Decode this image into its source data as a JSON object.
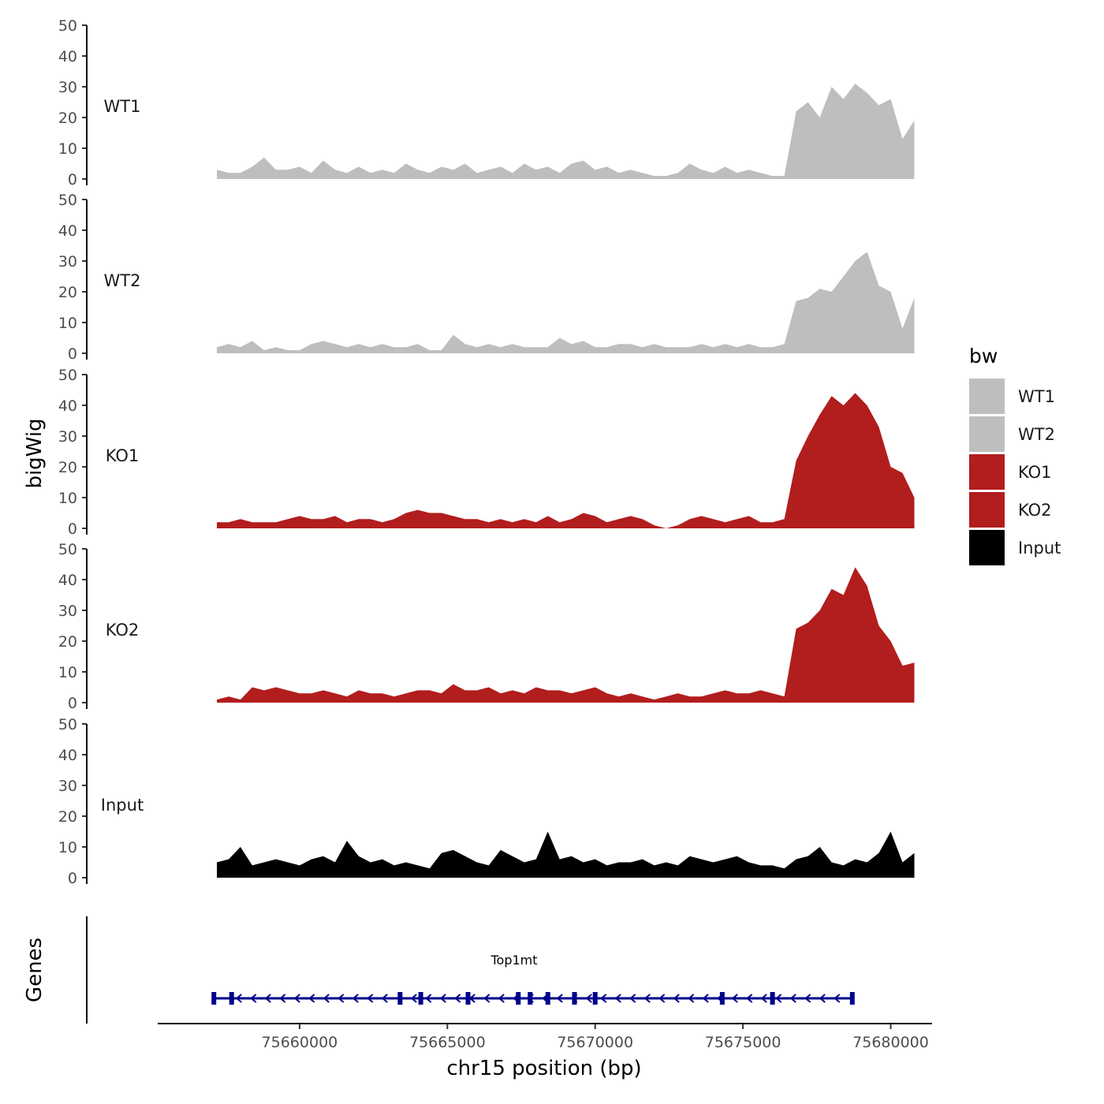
{
  "chart_data": {
    "type": "area",
    "x": [
      75657200,
      75657600,
      75658000,
      75658400,
      75658800,
      75659200,
      75659600,
      75660000,
      75660400,
      75660800,
      75661200,
      75661600,
      75662000,
      75662400,
      75662800,
      75663200,
      75663600,
      75664000,
      75664400,
      75664800,
      75665200,
      75665600,
      75666000,
      75666400,
      75666800,
      75667200,
      75667600,
      75668000,
      75668400,
      75668800,
      75669200,
      75669600,
      75670000,
      75670400,
      75670800,
      75671200,
      75671600,
      75672000,
      75672400,
      75672800,
      75673200,
      75673600,
      75674000,
      75674400,
      75674800,
      75675200,
      75675600,
      75676000,
      75676400,
      75676800,
      75677200,
      75677600,
      75678000,
      75678400,
      75678800,
      75679200,
      75679600,
      75680000,
      75680400,
      75680800
    ],
    "series": [
      {
        "name": "WT1",
        "color": "#bebebe",
        "values": [
          3,
          2,
          2,
          4,
          7,
          3,
          3,
          4,
          2,
          6,
          3,
          2,
          4,
          2,
          3,
          2,
          5,
          3,
          2,
          4,
          3,
          5,
          2,
          3,
          4,
          2,
          5,
          3,
          4,
          2,
          5,
          6,
          3,
          4,
          2,
          3,
          2,
          1,
          1,
          2,
          5,
          3,
          2,
          4,
          2,
          3,
          2,
          1,
          1,
          22,
          25,
          20,
          30,
          26,
          31,
          28,
          24,
          26,
          13,
          19
        ]
      },
      {
        "name": "WT2",
        "color": "#bebebe",
        "values": [
          2,
          3,
          2,
          4,
          1,
          2,
          1,
          1,
          3,
          4,
          3,
          2,
          3,
          2,
          3,
          2,
          2,
          3,
          1,
          1,
          6,
          3,
          2,
          3,
          2,
          3,
          2,
          2,
          2,
          5,
          3,
          4,
          2,
          2,
          3,
          3,
          2,
          3,
          2,
          2,
          2,
          3,
          2,
          3,
          2,
          3,
          2,
          2,
          3,
          17,
          18,
          21,
          20,
          25,
          30,
          33,
          22,
          20,
          8,
          18
        ]
      },
      {
        "name": "KO1",
        "color": "#b21d1d",
        "values": [
          2,
          2,
          3,
          2,
          2,
          2,
          3,
          4,
          3,
          3,
          4,
          2,
          3,
          3,
          2,
          3,
          5,
          6,
          5,
          5,
          4,
          3,
          3,
          2,
          3,
          2,
          3,
          2,
          4,
          2,
          3,
          5,
          4,
          2,
          3,
          4,
          3,
          1,
          0,
          1,
          3,
          4,
          3,
          2,
          3,
          4,
          2,
          2,
          3,
          22,
          30,
          37,
          43,
          40,
          44,
          40,
          33,
          20,
          18,
          10
        ]
      },
      {
        "name": "KO2",
        "color": "#b21d1d",
        "values": [
          1,
          2,
          1,
          5,
          4,
          5,
          4,
          3,
          3,
          4,
          3,
          2,
          4,
          3,
          3,
          2,
          3,
          4,
          4,
          3,
          6,
          4,
          4,
          5,
          3,
          4,
          3,
          5,
          4,
          4,
          3,
          4,
          5,
          3,
          2,
          3,
          2,
          1,
          2,
          3,
          2,
          2,
          3,
          4,
          3,
          3,
          4,
          3,
          2,
          24,
          26,
          30,
          37,
          35,
          44,
          38,
          25,
          20,
          12,
          13
        ]
      },
      {
        "name": "Input",
        "color": "#000000",
        "values": [
          5,
          6,
          10,
          4,
          5,
          6,
          5,
          4,
          6,
          7,
          5,
          12,
          7,
          5,
          6,
          4,
          5,
          4,
          3,
          8,
          9,
          7,
          5,
          4,
          9,
          7,
          5,
          6,
          15,
          6,
          7,
          5,
          6,
          4,
          5,
          5,
          6,
          4,
          5,
          4,
          7,
          6,
          5,
          6,
          7,
          5,
          4,
          4,
          3,
          6,
          7,
          10,
          5,
          4,
          6,
          5,
          8,
          15,
          5,
          8
        ]
      }
    ],
    "tracks": [
      "WT1",
      "WT2",
      "KO1",
      "KO2",
      "Input"
    ],
    "ylim": [
      0,
      50
    ],
    "yticks": [
      0,
      10,
      20,
      30,
      40,
      50
    ],
    "xlim": [
      75655200,
      75681400
    ],
    "xticks": [
      75660000,
      75665000,
      75670000,
      75675000,
      75680000
    ],
    "xtick_labels": [
      "75660000",
      "75665000",
      "75670000",
      "75675000",
      "75680000"
    ],
    "xlabel": "chr15 position (bp)",
    "ylabel": "bigWig",
    "gene_track_label": "Genes",
    "legend": {
      "title": "bw",
      "entries": [
        {
          "label": "WT1",
          "color": "#bebebe"
        },
        {
          "label": "WT2",
          "color": "#bebebe"
        },
        {
          "label": "KO1",
          "color": "#b21d1d"
        },
        {
          "label": "KO2",
          "color": "#b21d1d"
        },
        {
          "label": "Input",
          "color": "#000000"
        }
      ]
    },
    "gene": {
      "name": "Top1mt",
      "strand": "-",
      "start": 75657100,
      "end": 75678700,
      "color": "#00008b",
      "exons": [
        75657100,
        75657700,
        75663400,
        75664100,
        75665700,
        75667400,
        75667800,
        75668400,
        75669300,
        75670000,
        75674300,
        75676000,
        75678700
      ]
    }
  }
}
